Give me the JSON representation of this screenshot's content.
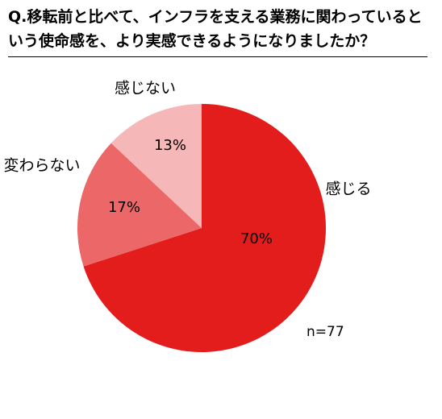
{
  "chart_data": {
    "type": "pie",
    "title": "Q.移転前と比べて、インフラを支える業務に関わっているという使命感を、より実感できるようになりましたか？",
    "categories": [
      "感じる",
      "変わらない",
      "感じない"
    ],
    "values": [
      70,
      17,
      13
    ],
    "value_labels": [
      "70%",
      "17%",
      "13%"
    ],
    "colors": [
      "#e31c1c",
      "#ec6767",
      "#f5b7b7"
    ],
    "annotation": "n=77"
  }
}
